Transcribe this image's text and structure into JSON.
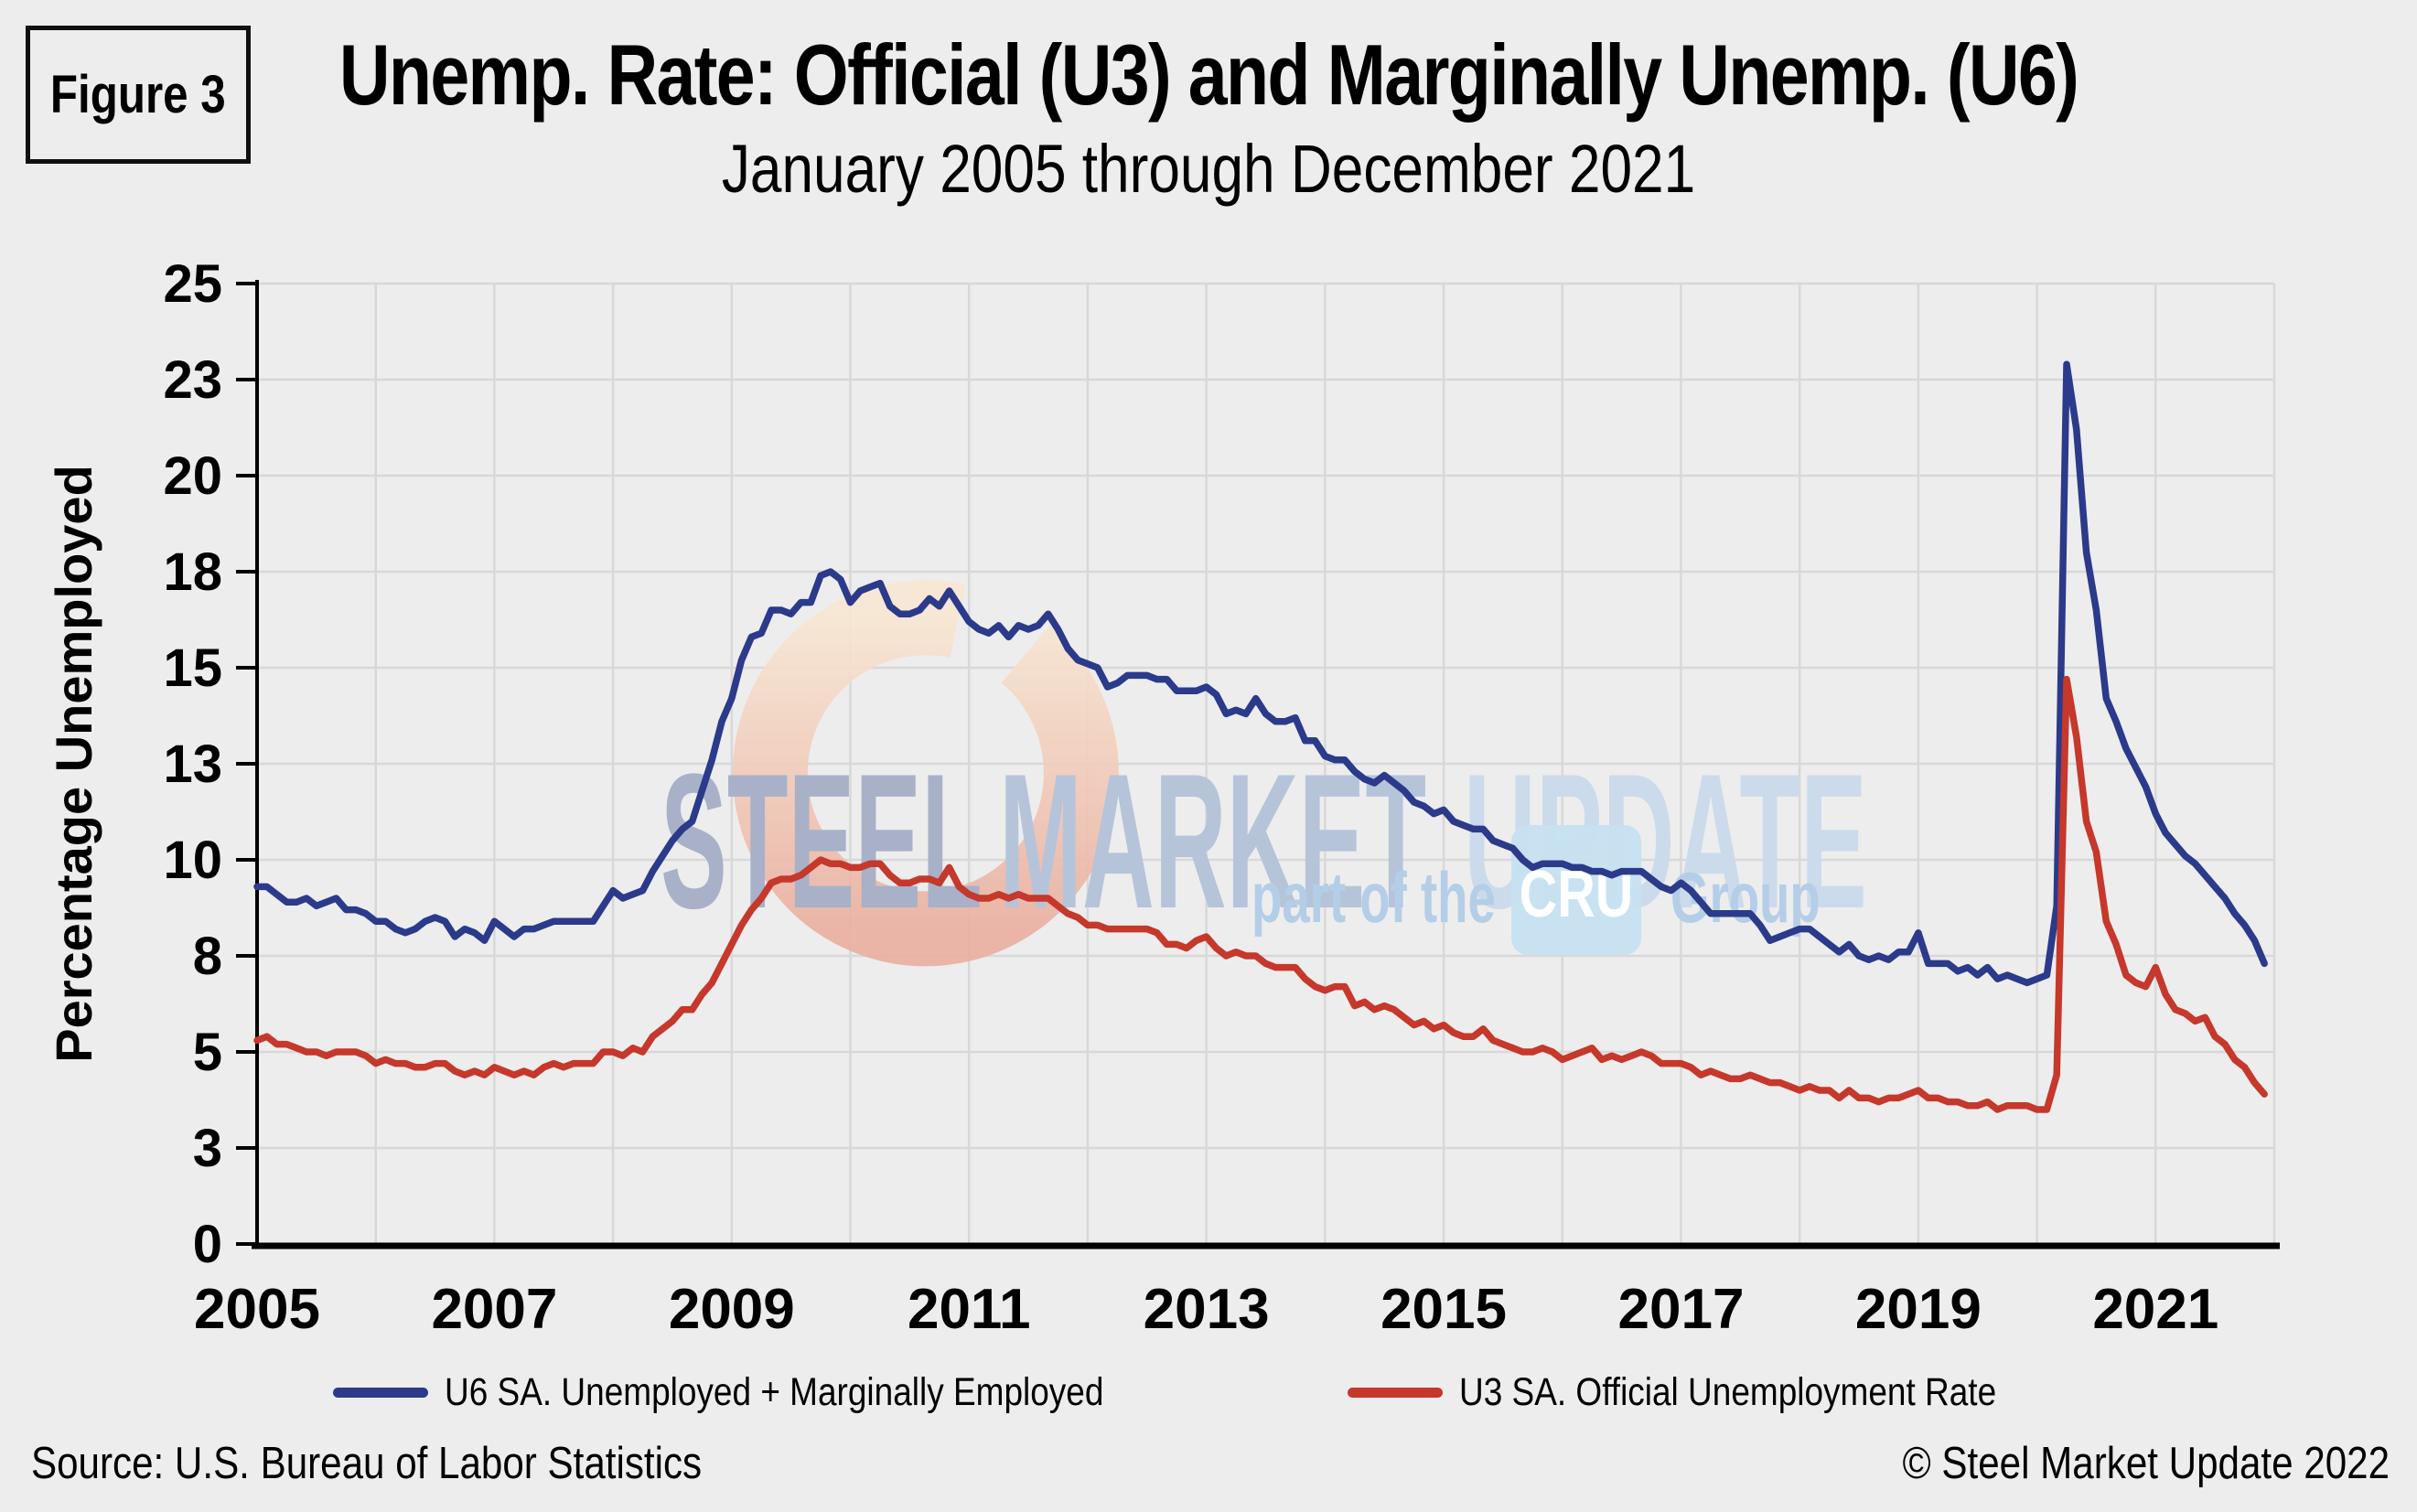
{
  "header": {
    "figure_label": "Figure 3",
    "title": "Unemp. Rate: Official (U3) and Marginally Unemp. (U6)",
    "subtitle": "January 2005 through December 2021"
  },
  "footer": {
    "source": "Source: U.S. Bureau  of Labor Statistics",
    "copyright": "© Steel Market Update 2022"
  },
  "watermark": {
    "word1": "STEEL",
    "word2": "MARKET",
    "word3": "UPDATE",
    "tagline_prefix": "part of the",
    "tagline_box": "CRU",
    "tagline_suffix": "Group",
    "colors": {
      "word1": "#a8b1c8",
      "word2": "#b6c4da",
      "word3": "#cbdbec",
      "tagline": "#b5cee7",
      "box": "#c6e2f1",
      "box_text": "#ffffff",
      "swoosh_top": "#f8e6d2",
      "swoosh_bottom": "#eaaf9f"
    }
  },
  "chart_data": {
    "type": "line",
    "title": "Unemp. Rate: Official (U3) and Marginally Unemp. (U6)",
    "subtitle": "January 2005 through December 2021",
    "ylabel": "Percentage Unemployed",
    "xlabel": "",
    "grid": true,
    "legend_position": "bottom",
    "x_start": "2005-01",
    "x_end": "2021-12",
    "frequency": "monthly",
    "x_tick_labels": [
      "2005",
      "2007",
      "2009",
      "2011",
      "2013",
      "2015",
      "2017",
      "2019",
      "2021"
    ],
    "y_axis": {
      "min": 0,
      "max": 25,
      "tick_step": 2.5,
      "tick_labels": [
        "0",
        "3",
        "5",
        "8",
        "10",
        "13",
        "15",
        "18",
        "20",
        "23",
        "25"
      ]
    },
    "colors": {
      "grid": "#d8d8d8",
      "axis": "#000000",
      "background": "#ededed"
    },
    "series": [
      {
        "name": "U6 SA. Unemployed + Marginally Employed",
        "color": "#2b3a8a",
        "values": [
          9.3,
          9.3,
          9.1,
          8.9,
          8.9,
          9.0,
          8.8,
          8.9,
          9.0,
          8.7,
          8.7,
          8.6,
          8.4,
          8.4,
          8.2,
          8.1,
          8.2,
          8.4,
          8.5,
          8.4,
          8.0,
          8.2,
          8.1,
          7.9,
          8.4,
          8.2,
          8.0,
          8.2,
          8.2,
          8.3,
          8.4,
          8.4,
          8.4,
          8.4,
          8.4,
          8.8,
          9.2,
          9.0,
          9.1,
          9.2,
          9.7,
          10.1,
          10.5,
          10.8,
          11.0,
          11.8,
          12.6,
          13.6,
          14.2,
          15.2,
          15.8,
          15.9,
          16.5,
          16.5,
          16.4,
          16.7,
          16.7,
          17.4,
          17.5,
          17.3,
          16.7,
          17.0,
          17.1,
          17.2,
          16.6,
          16.4,
          16.4,
          16.5,
          16.8,
          16.6,
          17.0,
          16.6,
          16.2,
          16.0,
          15.9,
          16.1,
          15.8,
          16.1,
          16.0,
          16.1,
          16.4,
          16.0,
          15.5,
          15.2,
          15.1,
          15.0,
          14.5,
          14.6,
          14.8,
          14.8,
          14.8,
          14.7,
          14.7,
          14.4,
          14.4,
          14.4,
          14.5,
          14.3,
          13.8,
          13.9,
          13.8,
          14.2,
          13.8,
          13.6,
          13.6,
          13.7,
          13.1,
          13.1,
          12.7,
          12.6,
          12.6,
          12.3,
          12.1,
          12.0,
          12.2,
          12.0,
          11.8,
          11.5,
          11.4,
          11.2,
          11.3,
          11.0,
          10.9,
          10.8,
          10.8,
          10.5,
          10.4,
          10.3,
          10.0,
          9.8,
          9.9,
          9.9,
          9.9,
          9.8,
          9.8,
          9.7,
          9.7,
          9.6,
          9.7,
          9.7,
          9.7,
          9.5,
          9.3,
          9.2,
          9.4,
          9.2,
          8.9,
          8.6,
          8.6,
          8.6,
          8.6,
          8.6,
          8.3,
          7.9,
          8.0,
          8.1,
          8.2,
          8.2,
          8.0,
          7.8,
          7.6,
          7.8,
          7.5,
          7.4,
          7.5,
          7.4,
          7.6,
          7.6,
          8.1,
          7.3,
          7.3,
          7.3,
          7.1,
          7.2,
          7.0,
          7.2,
          6.9,
          7.0,
          6.9,
          6.8,
          6.9,
          7.0,
          8.8,
          22.9,
          21.2,
          18.0,
          16.5,
          14.2,
          13.6,
          12.9,
          12.4,
          11.9,
          11.2,
          10.7,
          10.4,
          10.1,
          9.9,
          9.6,
          9.3,
          9.0,
          8.6,
          8.3,
          7.9,
          7.3
        ]
      },
      {
        "name": "U3 SA. Official Unemployment Rate",
        "color": "#c5382b",
        "values": [
          5.3,
          5.4,
          5.2,
          5.2,
          5.1,
          5.0,
          5.0,
          4.9,
          5.0,
          5.0,
          5.0,
          4.9,
          4.7,
          4.8,
          4.7,
          4.7,
          4.6,
          4.6,
          4.7,
          4.7,
          4.5,
          4.4,
          4.5,
          4.4,
          4.6,
          4.5,
          4.4,
          4.5,
          4.4,
          4.6,
          4.7,
          4.6,
          4.7,
          4.7,
          4.7,
          5.0,
          5.0,
          4.9,
          5.1,
          5.0,
          5.4,
          5.6,
          5.8,
          6.1,
          6.1,
          6.5,
          6.8,
          7.3,
          7.8,
          8.3,
          8.7,
          9.0,
          9.4,
          9.5,
          9.5,
          9.6,
          9.8,
          10.0,
          9.9,
          9.9,
          9.8,
          9.8,
          9.9,
          9.9,
          9.6,
          9.4,
          9.4,
          9.5,
          9.5,
          9.4,
          9.8,
          9.3,
          9.1,
          9.0,
          9.0,
          9.1,
          9.0,
          9.1,
          9.0,
          9.0,
          9.0,
          8.8,
          8.6,
          8.5,
          8.3,
          8.3,
          8.2,
          8.2,
          8.2,
          8.2,
          8.2,
          8.1,
          7.8,
          7.8,
          7.7,
          7.9,
          8.0,
          7.7,
          7.5,
          7.6,
          7.5,
          7.5,
          7.3,
          7.2,
          7.2,
          7.2,
          6.9,
          6.7,
          6.6,
          6.7,
          6.7,
          6.2,
          6.3,
          6.1,
          6.2,
          6.1,
          5.9,
          5.7,
          5.8,
          5.6,
          5.7,
          5.5,
          5.4,
          5.4,
          5.6,
          5.3,
          5.2,
          5.1,
          5.0,
          5.0,
          5.1,
          5.0,
          4.8,
          4.9,
          5.0,
          5.1,
          4.8,
          4.9,
          4.8,
          4.9,
          5.0,
          4.9,
          4.7,
          4.7,
          4.7,
          4.6,
          4.4,
          4.5,
          4.4,
          4.3,
          4.3,
          4.4,
          4.3,
          4.2,
          4.2,
          4.1,
          4.0,
          4.1,
          4.0,
          4.0,
          3.8,
          4.0,
          3.8,
          3.8,
          3.7,
          3.8,
          3.8,
          3.9,
          4.0,
          3.8,
          3.8,
          3.7,
          3.7,
          3.6,
          3.6,
          3.7,
          3.5,
          3.6,
          3.6,
          3.6,
          3.5,
          3.5,
          4.4,
          14.7,
          13.2,
          11.0,
          10.2,
          8.4,
          7.8,
          7.0,
          6.8,
          6.7,
          7.2,
          6.5,
          6.1,
          6.0,
          5.8,
          5.9,
          5.4,
          5.2,
          4.8,
          4.6,
          4.2,
          3.9
        ]
      }
    ]
  }
}
